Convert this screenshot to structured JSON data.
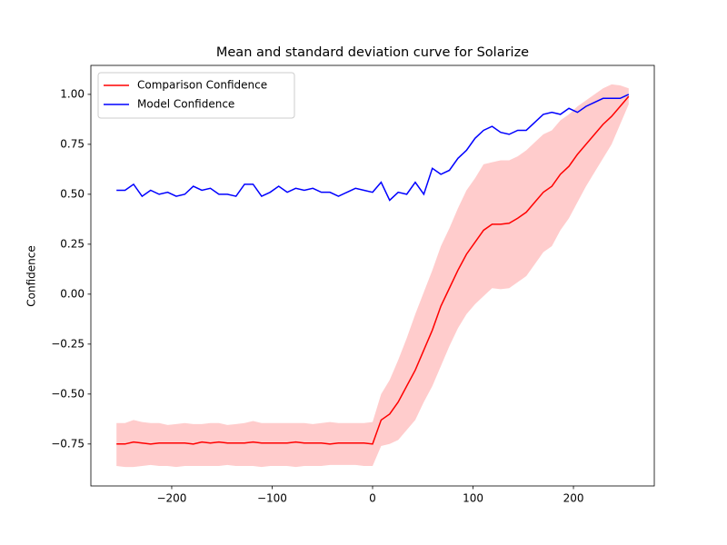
{
  "chart_data": {
    "type": "line",
    "title": "Mean and standard deviation curve for Solarize",
    "y_label": "Confidence",
    "x": [
      -255,
      -246.5,
      -238,
      -229.5,
      -221,
      -212.5,
      -204,
      -195.5,
      -187,
      -178.5,
      -170,
      -161.5,
      -153,
      -144.5,
      -136,
      -127.5,
      -119,
      -110.5,
      -102,
      -93.5,
      -85,
      -76.5,
      -68,
      -59.5,
      -51,
      -42.5,
      -34,
      -25.5,
      -17,
      -8.5,
      0,
      8.5,
      17,
      25.5,
      34,
      42.5,
      51,
      59.5,
      68,
      76.5,
      85,
      93.5,
      102,
      110.5,
      119,
      127.5,
      136,
      144.5,
      153,
      161.5,
      170,
      178.5,
      187,
      195.5,
      204,
      212.5,
      221,
      229.5,
      238,
      246.5,
      255
    ],
    "series": [
      {
        "name": "Comparison Confidence",
        "color": "#ff0000",
        "values": [
          -0.75,
          -0.75,
          -0.74,
          -0.745,
          -0.75,
          -0.745,
          -0.745,
          -0.745,
          -0.745,
          -0.75,
          -0.74,
          -0.745,
          -0.74,
          -0.745,
          -0.745,
          -0.745,
          -0.74,
          -0.745,
          -0.745,
          -0.745,
          -0.745,
          -0.74,
          -0.745,
          -0.745,
          -0.745,
          -0.75,
          -0.745,
          -0.745,
          -0.745,
          -0.745,
          -0.75,
          -0.63,
          -0.6,
          -0.54,
          -0.46,
          -0.38,
          -0.28,
          -0.18,
          -0.06,
          0.03,
          0.12,
          0.2,
          0.26,
          0.32,
          0.35,
          0.35,
          0.355,
          0.38,
          0.41,
          0.46,
          0.51,
          0.54,
          0.6,
          0.64,
          0.7,
          0.75,
          0.8,
          0.85,
          0.89,
          0.94,
          0.99
        ],
        "band": {
          "color": "#ffcccc",
          "upper": [
            -0.645,
            -0.645,
            -0.63,
            -0.64,
            -0.645,
            -0.645,
            -0.655,
            -0.65,
            -0.645,
            -0.65,
            -0.65,
            -0.645,
            -0.645,
            -0.655,
            -0.65,
            -0.645,
            -0.635,
            -0.645,
            -0.645,
            -0.645,
            -0.645,
            -0.645,
            -0.645,
            -0.65,
            -0.645,
            -0.64,
            -0.645,
            -0.645,
            -0.645,
            -0.645,
            -0.64,
            -0.5,
            -0.43,
            -0.33,
            -0.22,
            -0.1,
            0.01,
            0.12,
            0.24,
            0.33,
            0.43,
            0.52,
            0.58,
            0.65,
            0.66,
            0.67,
            0.67,
            0.69,
            0.72,
            0.76,
            0.8,
            0.82,
            0.87,
            0.9,
            0.94,
            0.97,
            1.0,
            1.03,
            1.05,
            1.045,
            1.03
          ],
          "lower": [
            -0.86,
            -0.865,
            -0.865,
            -0.86,
            -0.855,
            -0.86,
            -0.86,
            -0.865,
            -0.86,
            -0.86,
            -0.86,
            -0.86,
            -0.86,
            -0.855,
            -0.86,
            -0.86,
            -0.86,
            -0.865,
            -0.86,
            -0.86,
            -0.86,
            -0.865,
            -0.86,
            -0.86,
            -0.86,
            -0.855,
            -0.855,
            -0.855,
            -0.855,
            -0.86,
            -0.86,
            -0.76,
            -0.75,
            -0.73,
            -0.68,
            -0.63,
            -0.54,
            -0.46,
            -0.36,
            -0.26,
            -0.17,
            -0.1,
            -0.05,
            -0.01,
            0.03,
            0.025,
            0.03,
            0.06,
            0.09,
            0.15,
            0.21,
            0.24,
            0.32,
            0.38,
            0.46,
            0.54,
            0.61,
            0.68,
            0.75,
            0.85,
            0.95
          ]
        }
      },
      {
        "name": "Model Confidence",
        "color": "#0000ff",
        "values": [
          0.52,
          0.52,
          0.55,
          0.49,
          0.52,
          0.5,
          0.51,
          0.49,
          0.5,
          0.54,
          0.52,
          0.53,
          0.5,
          0.5,
          0.49,
          0.55,
          0.55,
          0.49,
          0.51,
          0.54,
          0.51,
          0.53,
          0.52,
          0.53,
          0.51,
          0.51,
          0.49,
          0.51,
          0.53,
          0.52,
          0.51,
          0.56,
          0.47,
          0.51,
          0.5,
          0.56,
          0.5,
          0.63,
          0.6,
          0.62,
          0.68,
          0.72,
          0.78,
          0.82,
          0.84,
          0.81,
          0.8,
          0.82,
          0.82,
          0.86,
          0.9,
          0.91,
          0.9,
          0.93,
          0.91,
          0.94,
          0.96,
          0.98,
          0.98,
          0.98,
          1.0
        ]
      }
    ],
    "xlim": [
      -280.5,
      280.5
    ],
    "ylim": [
      -0.96,
      1.145
    ],
    "xticks": [
      {
        "value": -200,
        "label": "−200"
      },
      {
        "value": -100,
        "label": "−100"
      },
      0,
      {
        "value": 100,
        "label": "100"
      },
      {
        "value": 200,
        "label": "200"
      }
    ],
    "yticks": [
      {
        "value": -0.75,
        "label": "−0.75"
      },
      {
        "value": -0.5,
        "label": "−0.50"
      },
      {
        "value": -0.25,
        "label": "−0.25"
      },
      {
        "value": 0,
        "label": "0.00"
      },
      {
        "value": 0.25,
        "label": "0.25"
      },
      {
        "value": 0.5,
        "label": "0.50"
      },
      {
        "value": 0.75,
        "label": "0.75"
      },
      {
        "value": 1,
        "label": "1.00"
      }
    ],
    "legend": "upper left",
    "grid": false
  }
}
